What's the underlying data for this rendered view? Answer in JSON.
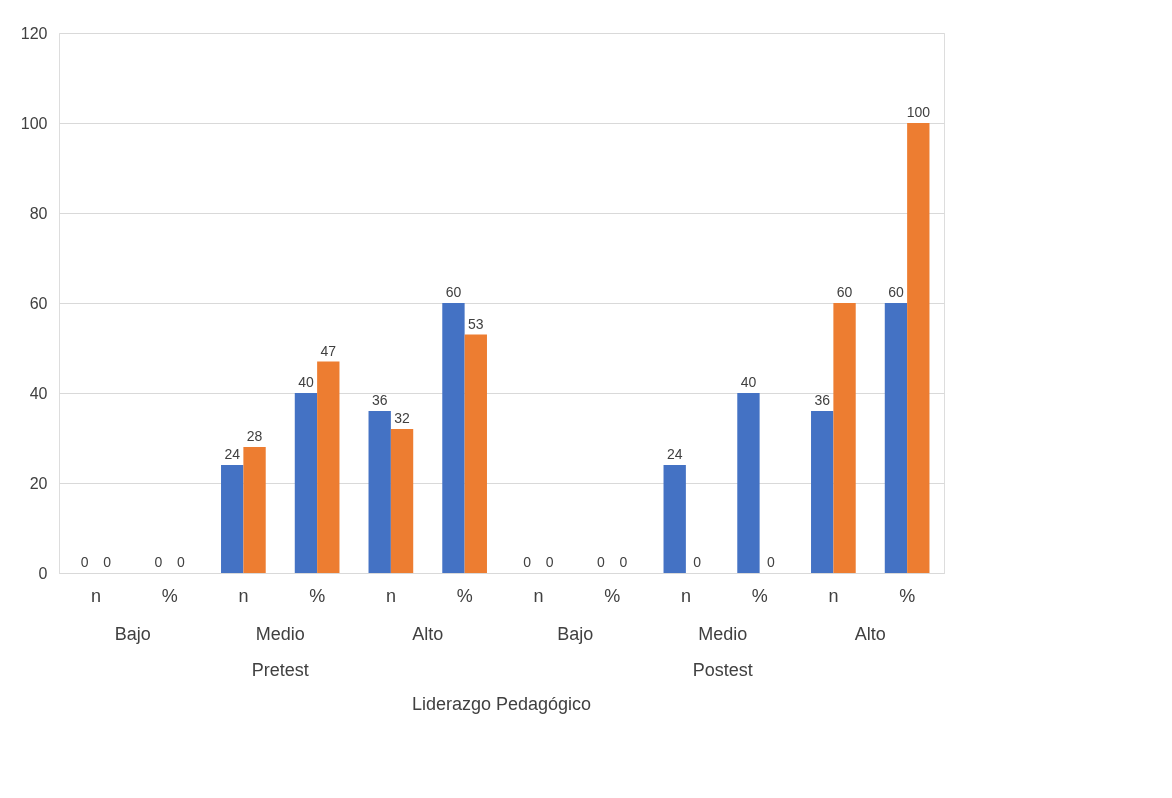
{
  "chart_data": {
    "type": "bar",
    "categories": [
      "n",
      "%",
      "n",
      "%",
      "n",
      "%",
      "n",
      "%",
      "n",
      "%",
      "n",
      "%"
    ],
    "series": [
      {
        "color": "#4472c4",
        "values": [
          0,
          0,
          24,
          40,
          36,
          60,
          0,
          0,
          24,
          40,
          36,
          60
        ]
      },
      {
        "color": "#ed7d31",
        "values": [
          0,
          0,
          28,
          47,
          32,
          53,
          0,
          0,
          0,
          0,
          60,
          100
        ]
      }
    ],
    "xlabel": "Liderazgo Pedagógico",
    "annotations": [
      "Bajo",
      "Medio",
      "Alto",
      "Bajo",
      "Medio",
      "Alto",
      "Pretest",
      "Postest"
    ],
    "ylim": [
      0,
      120
    ],
    "yticks": [
      0,
      20,
      40,
      60,
      80,
      100,
      120
    ],
    "grid": "y",
    "legend": false,
    "data_labels": true
  }
}
